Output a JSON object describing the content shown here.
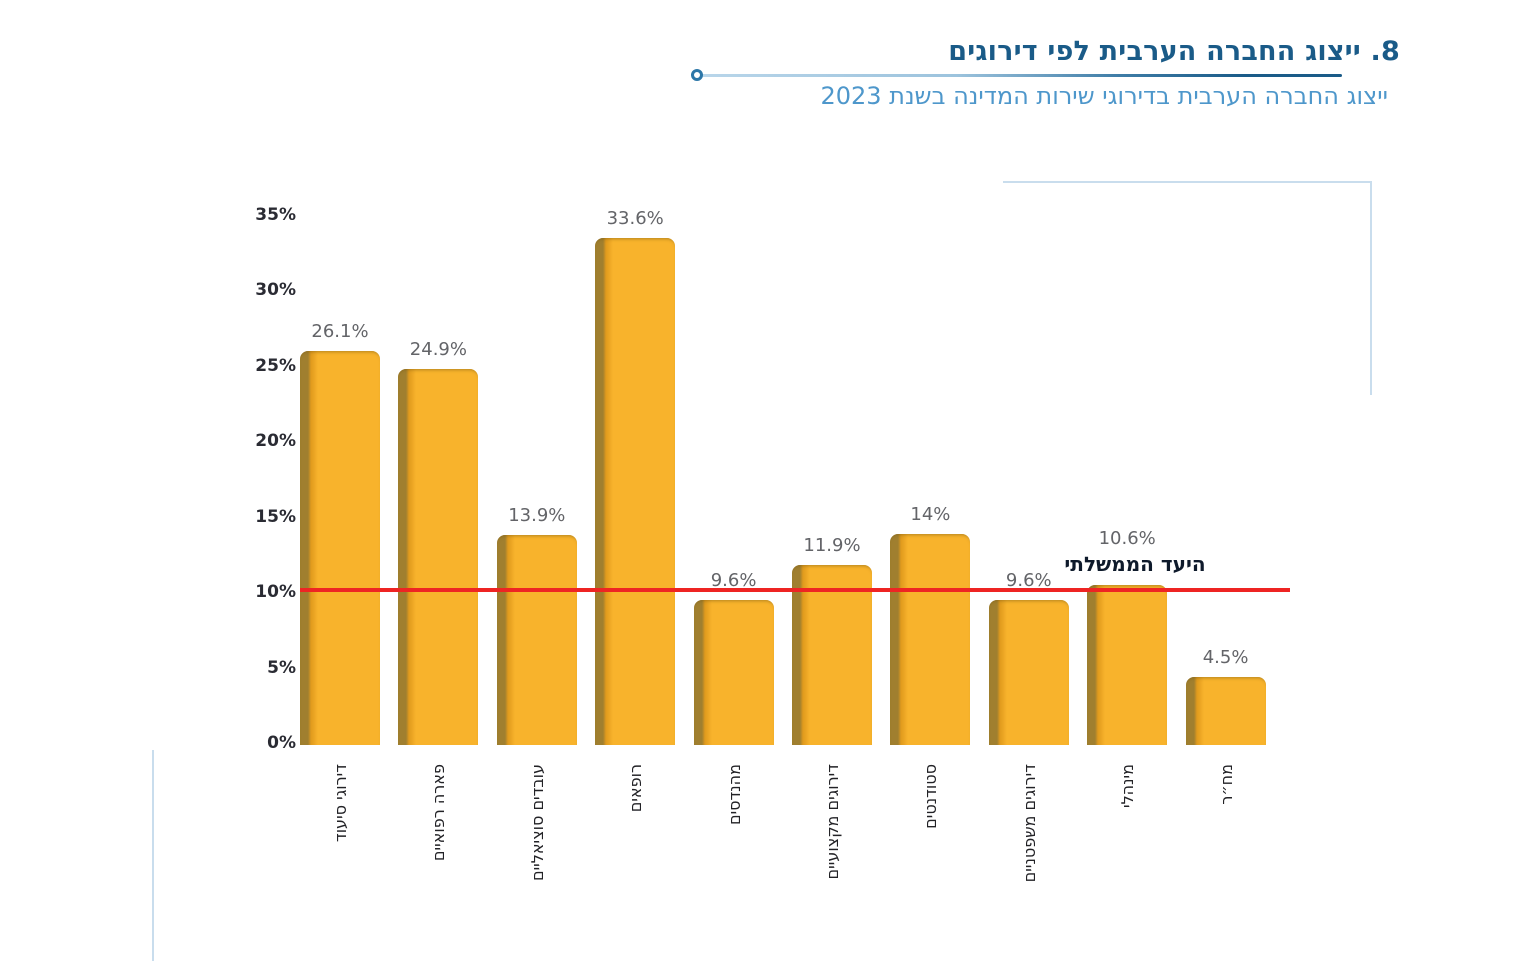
{
  "header": {
    "title": "8. ייצוג החברה הערבית לפי דירוגים",
    "subtitle": "ייצוג החברה הערבית בדירוגי שירות המדינה בשנת 2023"
  },
  "chart_data": {
    "type": "bar",
    "title": "8. ייצוג החברה הערבית לפי דירוגים",
    "subtitle": "ייצוג החברה הערבית בדירוגי שירות המדינה בשנת 2023",
    "categories": [
      "דירוגי סיעוד",
      "פארה רפואיים",
      "עובדים סוציאליים",
      "רופאים",
      "מהנדסים",
      "דירוגים מקצועיים",
      "סטודנטים",
      "דירוגים משפטניים",
      "מינהלי",
      "מח״ר"
    ],
    "values": [
      26.1,
      24.9,
      13.9,
      33.6,
      9.6,
      11.9,
      14,
      9.6,
      10.6,
      4.5
    ],
    "value_labels": [
      "26.1%",
      "24.9%",
      "13.9%",
      "33.6%",
      "9.6%",
      "11.9%",
      "14%",
      "9.6%",
      "10.6%",
      "4.5%"
    ],
    "y_ticks": [
      "0%",
      "5%",
      "10%",
      "15%",
      "20%",
      "25%",
      "30%",
      "35%"
    ],
    "ylim": [
      0,
      35
    ],
    "grid": false,
    "legend": false,
    "xlabel": "",
    "ylabel": "",
    "reference_line": {
      "value": 10,
      "label": "היעד הממשלתי",
      "color": "#ee2423"
    },
    "bar_color": "#f8b32c",
    "bar_edge_color": "#a07f2f",
    "title_color": "#1a5b88",
    "subtitle_color": "#4e97cb",
    "frame_color": "#c9dded"
  }
}
